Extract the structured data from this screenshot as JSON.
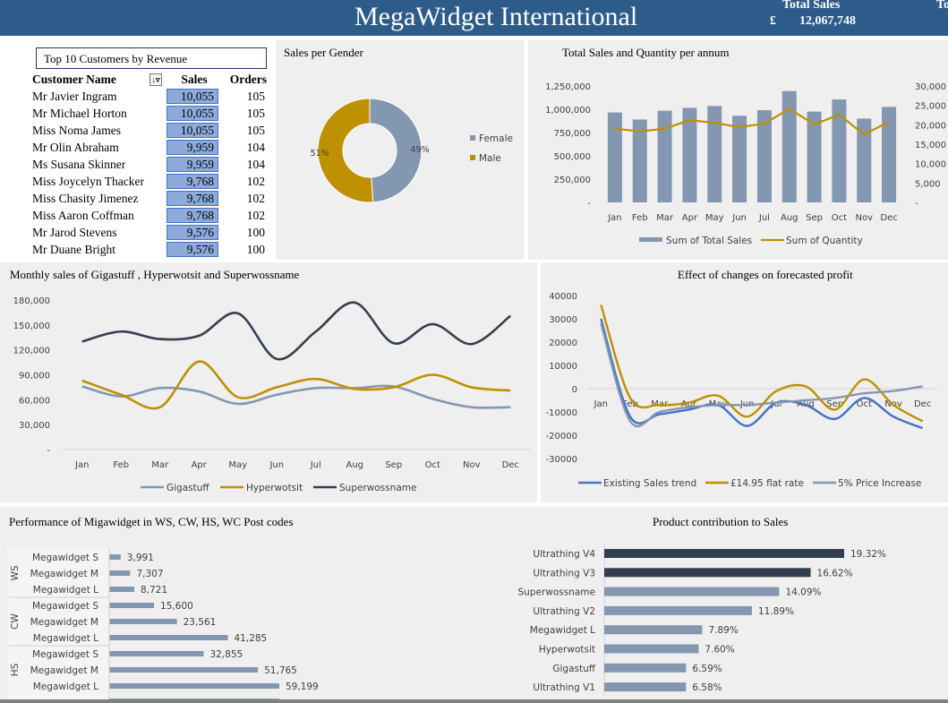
{
  "header": {
    "title": "MegaWidget International",
    "total_sales_label": "Total Sales",
    "currency": "£",
    "total_sales_value": "12,067,748",
    "cut_label": "To"
  },
  "top_customers": {
    "title": "Top 10 Customers by Revenue",
    "col_name": "Customer Name",
    "col_sales": "Sales",
    "col_orders": "Orders",
    "filter_icon": "filter-icon",
    "rows": [
      {
        "name": "Mr Javier Ingram",
        "sales": "10,055",
        "orders": "105"
      },
      {
        "name": "Mr Michael Horton",
        "sales": "10,055",
        "orders": "105"
      },
      {
        "name": "Miss Noma James",
        "sales": "10,055",
        "orders": "105"
      },
      {
        "name": "Mr Olin Abraham",
        "sales": "9,959",
        "orders": "104"
      },
      {
        "name": "Ms Susana Skinner",
        "sales": "9,959",
        "orders": "104"
      },
      {
        "name": "Miss Joycelyn Thacker",
        "sales": "9,768",
        "orders": "102"
      },
      {
        "name": "Miss Chasity Jimenez",
        "sales": "9,768",
        "orders": "102"
      },
      {
        "name": "Miss Aaron Coffman",
        "sales": "9,768",
        "orders": "102"
      },
      {
        "name": "Mr Jarod Stevens",
        "sales": "9,576",
        "orders": "100"
      },
      {
        "name": "Mr Duane Bright",
        "sales": "9,576",
        "orders": "100"
      }
    ]
  },
  "chart_data": [
    {
      "id": "gender",
      "type": "pie",
      "title": "Sales per Gender",
      "labels": [
        "Female",
        "Male"
      ],
      "values": [
        49,
        51
      ],
      "value_labels": [
        "49%",
        "51%"
      ],
      "colors": [
        "#8497b0",
        "#bf9000"
      ],
      "legend": "right"
    },
    {
      "id": "annual",
      "type": "bar",
      "title": "Total Sales and Quantity per annum",
      "categories": [
        "Jan",
        "Feb",
        "Mar",
        "Apr",
        "May",
        "Jun",
        "Jul",
        "Aug",
        "Sep",
        "Oct",
        "Nov",
        "Dec"
      ],
      "series": [
        {
          "name": "Sum of Total Sales",
          "type": "bar",
          "axis": "left",
          "color": "#8497b0",
          "values": [
            965000,
            890000,
            985000,
            1015000,
            1035000,
            930000,
            990000,
            1195000,
            975000,
            1105000,
            900000,
            1025000
          ]
        },
        {
          "name": "Sum of Quantity",
          "type": "line",
          "axis": "right",
          "color": "#bf9000",
          "values": [
            19000,
            18300,
            19000,
            21200,
            20500,
            19400,
            20300,
            24100,
            20100,
            22600,
            17500,
            20800
          ]
        }
      ],
      "ylim": [
        0,
        1250000
      ],
      "yticks": [
        "-",
        "250,000",
        "500,000",
        "750,000",
        "1,000,000",
        "1,250,000"
      ],
      "y2lim": [
        0,
        30000
      ],
      "y2ticks": [
        "-",
        "5,000",
        "10,000",
        "15,000",
        "20,000",
        "25,000",
        "30,000"
      ],
      "legend": "bottom"
    },
    {
      "id": "monthly",
      "type": "line",
      "title": "Monthly sales of Gigastuff , Hyperwotsit and Superwossname",
      "categories": [
        "Jan",
        "Feb",
        "Mar",
        "Apr",
        "May",
        "Jun",
        "Jul",
        "Aug",
        "Sep",
        "Oct",
        "Nov",
        "Dec"
      ],
      "series": [
        {
          "name": "Gigastuff",
          "color": "#8497b0",
          "values": [
            76000,
            64000,
            74000,
            70000,
            55000,
            66000,
            74000,
            74000,
            76000,
            61000,
            51000,
            51000
          ]
        },
        {
          "name": "Hyperwotsit",
          "color": "#bf9000",
          "values": [
            83000,
            66000,
            51000,
            106000,
            63000,
            75000,
            85000,
            73000,
            75000,
            90000,
            75000,
            71000
          ]
        },
        {
          "name": "Superwossname",
          "color": "#333f50",
          "values": [
            130000,
            142000,
            133000,
            137000,
            164000,
            109000,
            142000,
            177000,
            128000,
            151000,
            127000,
            161000
          ]
        }
      ],
      "ylim": [
        0,
        180000
      ],
      "yticks": [
        "-",
        "30,000",
        "60,000",
        "90,000",
        "120,000",
        "150,000",
        "180,000"
      ],
      "legend": "bottom"
    },
    {
      "id": "forecast",
      "type": "line",
      "title": "Effect of changes on forecasted profit",
      "categories": [
        "Jan",
        "Feb",
        "Mar",
        "Apr",
        "May",
        "Jun",
        "Jul",
        "Aug",
        "Sep",
        "Oct",
        "Nov",
        "Dec"
      ],
      "series": [
        {
          "name": "Existing Sales trend",
          "color": "#4472c4",
          "values": [
            30000,
            -12000,
            -11000,
            -9000,
            -7000,
            -16000,
            -6000,
            -7000,
            -13000,
            -4000,
            -12000,
            -17000
          ]
        },
        {
          "name": "£14.95 flat rate",
          "color": "#bf9000",
          "values": [
            36000,
            -4000,
            -7000,
            -6000,
            -3000,
            -12000,
            -1000,
            1000,
            -9000,
            4000,
            -7000,
            -14000
          ]
        },
        {
          "name": "5% Price Increase",
          "color": "#8497b0",
          "values": [
            28000,
            -14000,
            -10000,
            -8000,
            -7000,
            -7000,
            -6000,
            -5000,
            -4000,
            -2000,
            -1000,
            1000
          ]
        }
      ],
      "ylim": [
        -30000,
        40000
      ],
      "yticks": [
        "-30000",
        "-20000",
        "-10000",
        "0",
        "10000",
        "20000",
        "30000",
        "40000"
      ],
      "legend": "bottom"
    },
    {
      "id": "postcodes",
      "type": "bar",
      "orientation": "horizontal",
      "title": "Performance of Migawidget in WS, CW, HS, WC Post codes",
      "groups": [
        "WS",
        "CW",
        "HS"
      ],
      "categories": [
        "Megawidget S",
        "Megawidget M",
        "Megawidget L",
        "Megawidget S",
        "Megawidget M",
        "Megawidget L",
        "Megawidget S",
        "Megawidget M",
        "Megawidget L"
      ],
      "values": [
        3991,
        7307,
        8721,
        15600,
        23561,
        41285,
        32855,
        51765,
        59199
      ],
      "value_labels": [
        "3,991",
        "7,307",
        "8,721",
        "15,600",
        "23,561",
        "41,285",
        "32,855",
        "51,765",
        "59,199"
      ],
      "color": "#8497b0"
    },
    {
      "id": "products",
      "type": "bar",
      "orientation": "horizontal",
      "title": "Product contribution to Sales",
      "categories": [
        "Ultrathing V4",
        "Ultrathing V3",
        "Superwossname",
        "Ultrathing V2",
        "Megawidget L",
        "Hyperwotsit",
        "Gigastuff",
        "Ultrathing V1"
      ],
      "values": [
        19.32,
        16.62,
        14.09,
        11.89,
        7.89,
        7.6,
        6.59,
        6.58
      ],
      "value_labels": [
        "19.32%",
        "16.62%",
        "14.09%",
        "11.89%",
        "7.89%",
        "7.60%",
        "6.59%",
        "6.58%"
      ],
      "colors": [
        "#333f50",
        "#333f50",
        "#8497b0",
        "#8497b0",
        "#8497b0",
        "#8497b0",
        "#8497b0",
        "#8497b0"
      ]
    }
  ]
}
